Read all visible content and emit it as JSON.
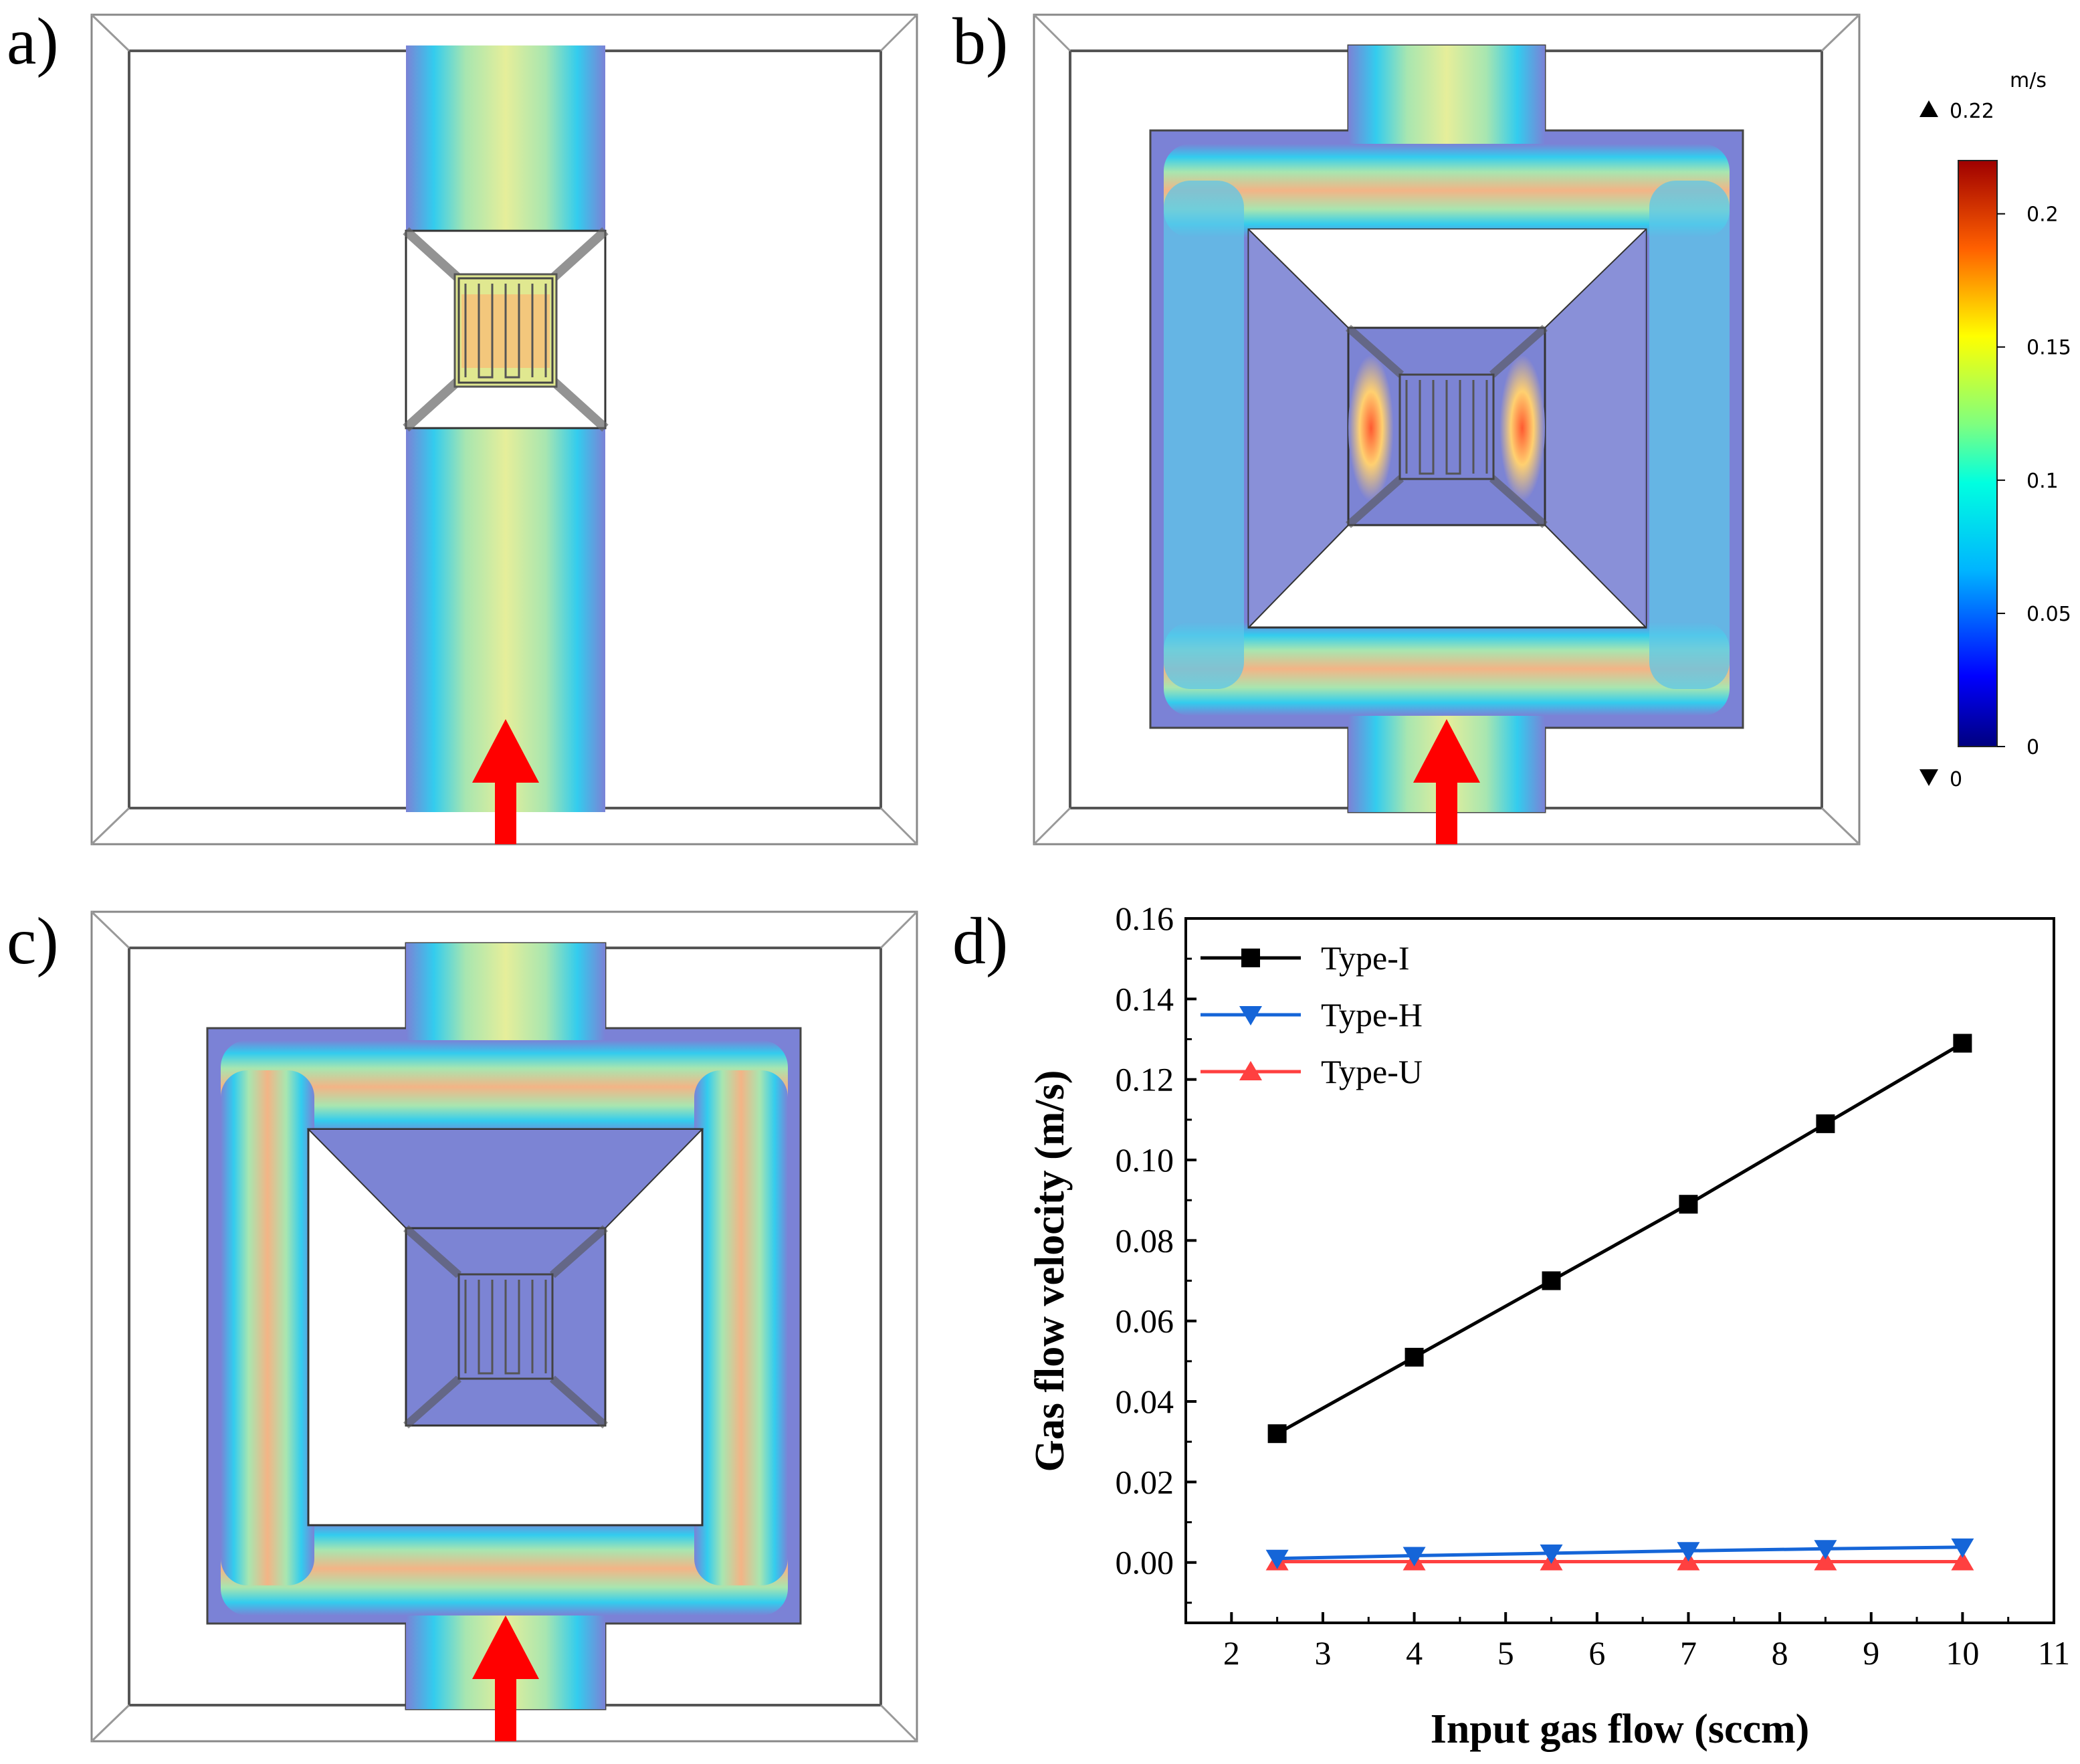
{
  "panels": {
    "a": {
      "label": "a)"
    },
    "b": {
      "label": "b)"
    },
    "c": {
      "label": "c)"
    },
    "d": {
      "label": "d)"
    }
  },
  "colorbar": {
    "unit": "m/s",
    "max_label": "0.22",
    "min_label": "0",
    "ticks": [
      "0.2",
      "0.15",
      "0.1",
      "0.05",
      "0"
    ],
    "tick_values": [
      0.2,
      0.15,
      0.1,
      0.05,
      0
    ],
    "range": [
      0,
      0.22
    ]
  },
  "colors": {
    "flow_arrow": "#ff0000",
    "type_i": "#000000",
    "type_h": "#1565d8",
    "type_u": "#ff4040",
    "low_velocity": "#7a7ccc"
  },
  "chart_data": {
    "type": "line",
    "xlabel": "Input gas flow (sccm)",
    "ylabel": "Gas flow velocity (m/s)",
    "xlim": [
      1.5,
      11
    ],
    "ylim": [
      -0.015,
      0.16
    ],
    "xticks": [
      2,
      3,
      4,
      5,
      6,
      7,
      8,
      9,
      10,
      11
    ],
    "yticks": [
      0.0,
      0.02,
      0.04,
      0.06,
      0.08,
      0.1,
      0.12,
      0.14,
      0.16
    ],
    "ytick_labels": [
      "0.00",
      "0.02",
      "0.04",
      "0.06",
      "0.08",
      "0.10",
      "0.12",
      "0.14",
      "0.16"
    ],
    "legend_position": "top-left",
    "x": [
      2.5,
      4,
      5.5,
      7,
      8.5,
      10
    ],
    "series": [
      {
        "name": "Type-I",
        "marker": "square",
        "color": "#000000",
        "values": [
          0.032,
          0.051,
          0.07,
          0.089,
          0.109,
          0.129
        ]
      },
      {
        "name": "Type-H",
        "marker": "triangle-down",
        "color": "#1565d8",
        "values": [
          0.001,
          0.0017,
          0.0023,
          0.0029,
          0.0034,
          0.0038
        ]
      },
      {
        "name": "Type-U",
        "marker": "triangle-up",
        "color": "#ff4040",
        "values": [
          0.0002,
          0.0002,
          0.0002,
          0.0002,
          0.0002,
          0.0002
        ]
      }
    ]
  }
}
